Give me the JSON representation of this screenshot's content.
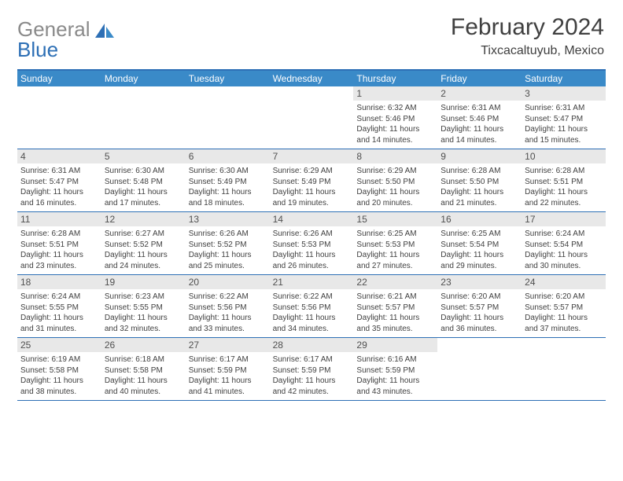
{
  "logo": {
    "part1": "General",
    "part2": "Blue"
  },
  "title": "February 2024",
  "location": "Tixcacaltuyub, Mexico",
  "colors": {
    "accent": "#3a8ac8",
    "border": "#2d6fb5",
    "daynum_bg": "#e8e8e8",
    "text": "#404040",
    "logo_gray": "#8a8a8a",
    "logo_blue": "#2d6fb5"
  },
  "days_of_week": [
    "Sunday",
    "Monday",
    "Tuesday",
    "Wednesday",
    "Thursday",
    "Friday",
    "Saturday"
  ],
  "weeks": [
    [
      null,
      null,
      null,
      null,
      {
        "n": "1",
        "sr": "6:32 AM",
        "ss": "5:46 PM",
        "dl": "11 hours and 14 minutes."
      },
      {
        "n": "2",
        "sr": "6:31 AM",
        "ss": "5:46 PM",
        "dl": "11 hours and 14 minutes."
      },
      {
        "n": "3",
        "sr": "6:31 AM",
        "ss": "5:47 PM",
        "dl": "11 hours and 15 minutes."
      }
    ],
    [
      {
        "n": "4",
        "sr": "6:31 AM",
        "ss": "5:47 PM",
        "dl": "11 hours and 16 minutes."
      },
      {
        "n": "5",
        "sr": "6:30 AM",
        "ss": "5:48 PM",
        "dl": "11 hours and 17 minutes."
      },
      {
        "n": "6",
        "sr": "6:30 AM",
        "ss": "5:49 PM",
        "dl": "11 hours and 18 minutes."
      },
      {
        "n": "7",
        "sr": "6:29 AM",
        "ss": "5:49 PM",
        "dl": "11 hours and 19 minutes."
      },
      {
        "n": "8",
        "sr": "6:29 AM",
        "ss": "5:50 PM",
        "dl": "11 hours and 20 minutes."
      },
      {
        "n": "9",
        "sr": "6:28 AM",
        "ss": "5:50 PM",
        "dl": "11 hours and 21 minutes."
      },
      {
        "n": "10",
        "sr": "6:28 AM",
        "ss": "5:51 PM",
        "dl": "11 hours and 22 minutes."
      }
    ],
    [
      {
        "n": "11",
        "sr": "6:28 AM",
        "ss": "5:51 PM",
        "dl": "11 hours and 23 minutes."
      },
      {
        "n": "12",
        "sr": "6:27 AM",
        "ss": "5:52 PM",
        "dl": "11 hours and 24 minutes."
      },
      {
        "n": "13",
        "sr": "6:26 AM",
        "ss": "5:52 PM",
        "dl": "11 hours and 25 minutes."
      },
      {
        "n": "14",
        "sr": "6:26 AM",
        "ss": "5:53 PM",
        "dl": "11 hours and 26 minutes."
      },
      {
        "n": "15",
        "sr": "6:25 AM",
        "ss": "5:53 PM",
        "dl": "11 hours and 27 minutes."
      },
      {
        "n": "16",
        "sr": "6:25 AM",
        "ss": "5:54 PM",
        "dl": "11 hours and 29 minutes."
      },
      {
        "n": "17",
        "sr": "6:24 AM",
        "ss": "5:54 PM",
        "dl": "11 hours and 30 minutes."
      }
    ],
    [
      {
        "n": "18",
        "sr": "6:24 AM",
        "ss": "5:55 PM",
        "dl": "11 hours and 31 minutes."
      },
      {
        "n": "19",
        "sr": "6:23 AM",
        "ss": "5:55 PM",
        "dl": "11 hours and 32 minutes."
      },
      {
        "n": "20",
        "sr": "6:22 AM",
        "ss": "5:56 PM",
        "dl": "11 hours and 33 minutes."
      },
      {
        "n": "21",
        "sr": "6:22 AM",
        "ss": "5:56 PM",
        "dl": "11 hours and 34 minutes."
      },
      {
        "n": "22",
        "sr": "6:21 AM",
        "ss": "5:57 PM",
        "dl": "11 hours and 35 minutes."
      },
      {
        "n": "23",
        "sr": "6:20 AM",
        "ss": "5:57 PM",
        "dl": "11 hours and 36 minutes."
      },
      {
        "n": "24",
        "sr": "6:20 AM",
        "ss": "5:57 PM",
        "dl": "11 hours and 37 minutes."
      }
    ],
    [
      {
        "n": "25",
        "sr": "6:19 AM",
        "ss": "5:58 PM",
        "dl": "11 hours and 38 minutes."
      },
      {
        "n": "26",
        "sr": "6:18 AM",
        "ss": "5:58 PM",
        "dl": "11 hours and 40 minutes."
      },
      {
        "n": "27",
        "sr": "6:17 AM",
        "ss": "5:59 PM",
        "dl": "11 hours and 41 minutes."
      },
      {
        "n": "28",
        "sr": "6:17 AM",
        "ss": "5:59 PM",
        "dl": "11 hours and 42 minutes."
      },
      {
        "n": "29",
        "sr": "6:16 AM",
        "ss": "5:59 PM",
        "dl": "11 hours and 43 minutes."
      },
      null,
      null
    ]
  ],
  "labels": {
    "sunrise": "Sunrise:",
    "sunset": "Sunset:",
    "daylight": "Daylight:"
  }
}
